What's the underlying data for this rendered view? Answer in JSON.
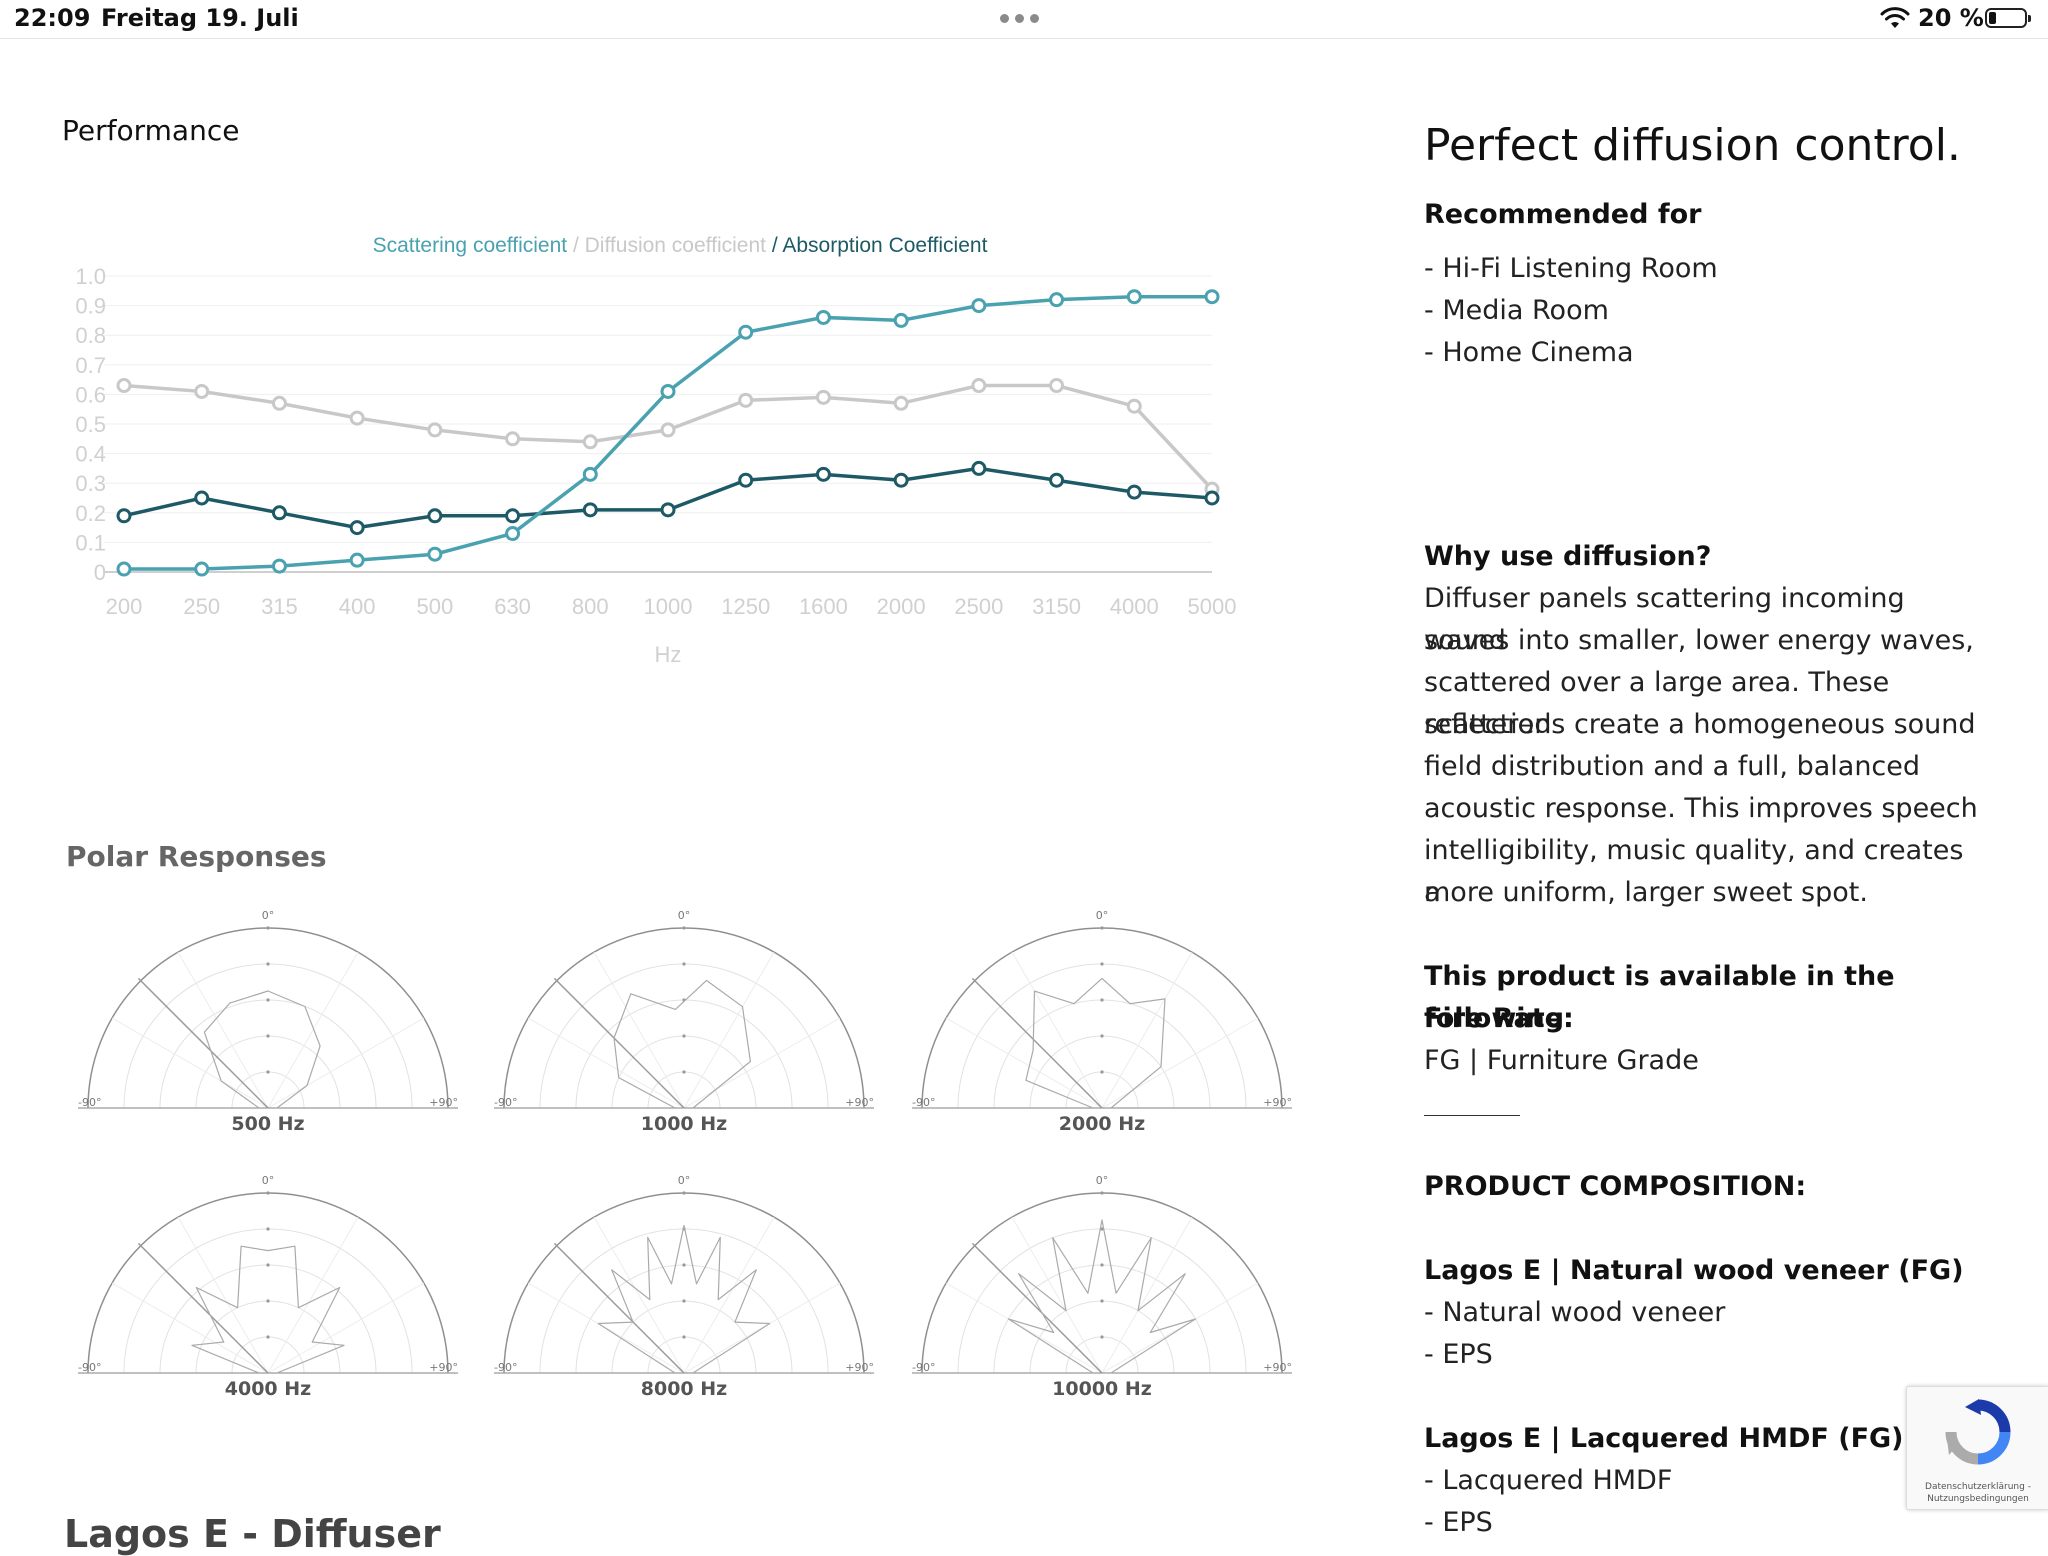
{
  "status_bar": {
    "time": "22:09",
    "date": "Freitag 19. Juli",
    "battery_pct": "20 %",
    "battery_level": 0.2
  },
  "performance": {
    "title": "Performance",
    "legend": {
      "scattering": "Scattering coefficient",
      "sep1": " / ",
      "diffusion": "Diffusion coefficient",
      "sep2": " / ",
      "absorption": "Absorption Coefficient"
    }
  },
  "chart_data": {
    "type": "line",
    "x": [
      "200",
      "250",
      "315",
      "400",
      "500",
      "630",
      "800",
      "1000",
      "1250",
      "1600",
      "2000",
      "2500",
      "3150",
      "4000",
      "5000"
    ],
    "xlabel": "Hz",
    "ylabel": "",
    "ylim": [
      0,
      1.0
    ],
    "yticks": [
      "0",
      "0.1",
      "0.2",
      "0.3",
      "0.4",
      "0.5",
      "0.6",
      "0.7",
      "0.8",
      "0.9",
      "1.0"
    ],
    "grid": true,
    "series": [
      {
        "name": "Scattering coefficient",
        "color": "#4aa2b0",
        "values": [
          0.01,
          0.01,
          0.02,
          0.04,
          0.06,
          0.13,
          0.33,
          0.61,
          0.81,
          0.86,
          0.85,
          0.9,
          0.92,
          0.93,
          0.93
        ]
      },
      {
        "name": "Diffusion coefficient",
        "color": "#c8c8c8",
        "values": [
          0.63,
          0.61,
          0.57,
          0.52,
          0.48,
          0.45,
          0.44,
          0.48,
          0.58,
          0.59,
          0.57,
          0.63,
          0.63,
          0.56,
          0.28
        ]
      },
      {
        "name": "Absorption Coefficient",
        "color": "#1e5a66",
        "values": [
          0.19,
          0.25,
          0.2,
          0.15,
          0.19,
          0.19,
          0.21,
          0.21,
          0.31,
          0.33,
          0.31,
          0.35,
          0.31,
          0.27,
          0.25
        ]
      }
    ]
  },
  "polar": {
    "title": "Polar Responses",
    "top_label": "0°",
    "left_label": "-90°",
    "right_label": "+90°",
    "items": [
      {
        "label": "500 Hz"
      },
      {
        "label": "1000 Hz"
      },
      {
        "label": "2000 Hz"
      },
      {
        "label": "4000 Hz"
      },
      {
        "label": "8000 Hz"
      },
      {
        "label": "10000 Hz"
      }
    ]
  },
  "bottom_heading": "Lagos E - Diffuser",
  "info": {
    "headline": "Perfect diffusion control.",
    "recommended_title": "Recommended for",
    "recommended": [
      "- Hi-Fi Listening Room",
      "- Media Room",
      "- Home Cinema"
    ],
    "why_title": "Why use diffusion?",
    "why_lines": [
      "Diffuser panels scattering incoming sound",
      "waves into smaller, lower energy waves,",
      "scattered over a large area. These scattered",
      "reflections create a homogeneous sound",
      "field distribution and a full, balanced",
      "acoustic response. This improves speech",
      "intelligibility, music quality, and creates a",
      "more uniform, larger sweet spot."
    ],
    "fire_title_1": "This product is available in the following",
    "fire_title_2": "Fire Rate:",
    "fire_value": "FG | Furniture Grade",
    "composition_title": "PRODUCT COMPOSITION:",
    "comp1_title": "Lagos E | Natural wood veneer (FG)",
    "comp1_items": [
      "- Natural wood veneer",
      "- EPS"
    ],
    "comp2_title": "Lagos E | Lacquered HMDF (FG)",
    "comp2_items": [
      "- Lacquered HMDF",
      "- EPS"
    ]
  },
  "recaptcha": {
    "links": "Datenschutzerklärung - Nutzungsbedingungen"
  },
  "colors": {
    "scattering": "#4aa2b0",
    "diffusion": "#c8c8c8",
    "absorption": "#1e5a66"
  }
}
